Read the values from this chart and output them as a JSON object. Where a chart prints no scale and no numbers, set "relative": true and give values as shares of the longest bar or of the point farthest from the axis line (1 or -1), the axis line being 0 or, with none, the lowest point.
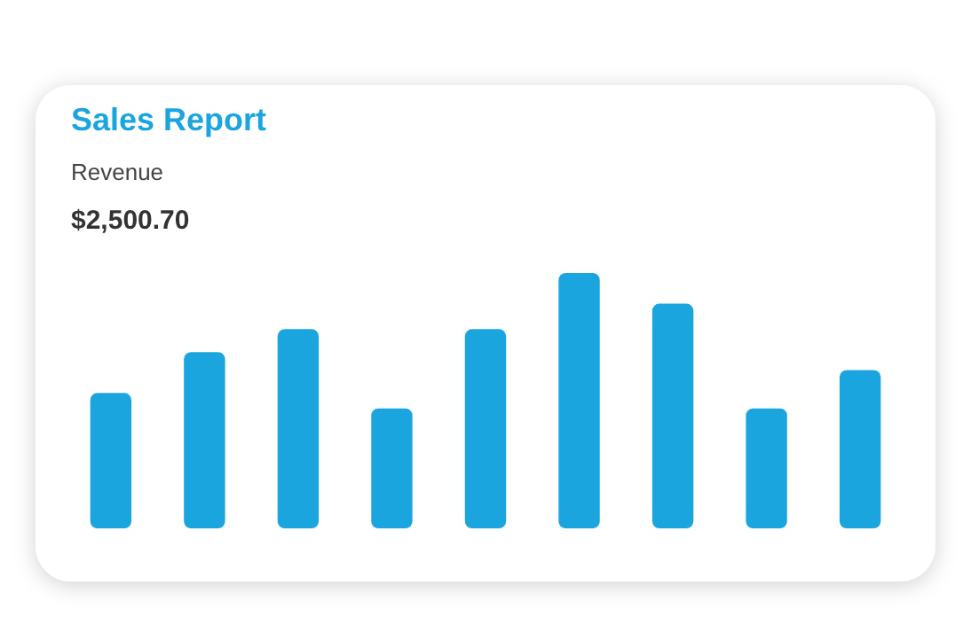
{
  "chart_data": {
    "type": "bar",
    "title": "Sales Report",
    "subtitle": "Revenue",
    "annotations": [
      "$2,500.70"
    ],
    "relative": true,
    "categories": [
      null,
      null,
      null,
      null,
      null,
      null,
      null,
      null,
      null
    ],
    "values": [
      0.53,
      0.69,
      0.78,
      0.47,
      0.78,
      1,
      0.88,
      0.47,
      0.62
    ],
    "color": "#1ba5df"
  }
}
